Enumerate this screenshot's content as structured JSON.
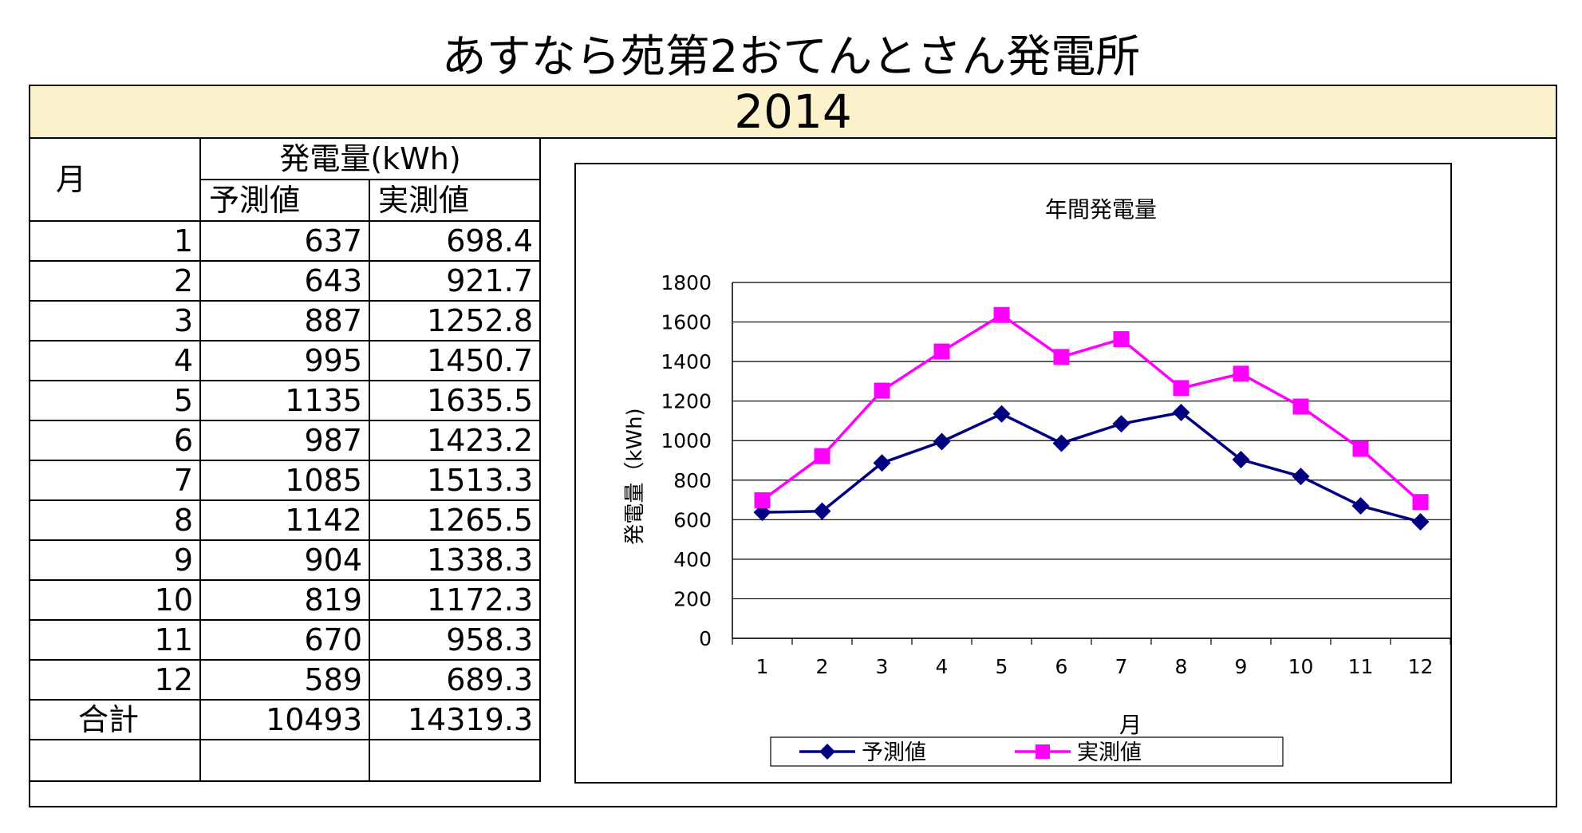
{
  "page": {
    "title": "あすなら苑第2おてんとさん発電所",
    "year": "2014"
  },
  "table": {
    "month_header": "月",
    "group_header": "発電量(kWh)",
    "col_headers": [
      "予測値",
      "実測値"
    ],
    "rows": [
      {
        "month": "1",
        "forecast": "637",
        "actual": "698.4"
      },
      {
        "month": "2",
        "forecast": "643",
        "actual": "921.7"
      },
      {
        "month": "3",
        "forecast": "887",
        "actual": "1252.8"
      },
      {
        "month": "4",
        "forecast": "995",
        "actual": "1450.7"
      },
      {
        "month": "5",
        "forecast": "1135",
        "actual": "1635.5"
      },
      {
        "month": "6",
        "forecast": "987",
        "actual": "1423.2"
      },
      {
        "month": "7",
        "forecast": "1085",
        "actual": "1513.3"
      },
      {
        "month": "8",
        "forecast": "1142",
        "actual": "1265.5"
      },
      {
        "month": "9",
        "forecast": "904",
        "actual": "1338.3"
      },
      {
        "month": "10",
        "forecast": "819",
        "actual": "1172.3"
      },
      {
        "month": "11",
        "forecast": "670",
        "actual": "958.3"
      },
      {
        "month": "12",
        "forecast": "589",
        "actual": "689.3"
      }
    ],
    "total": {
      "label": "合計",
      "forecast": "10493",
      "actual": "14319.3"
    }
  },
  "chart_data": {
    "type": "line",
    "title": "年間発電量",
    "xlabel": "月",
    "ylabel": "発電量（kWh)",
    "categories": [
      "1",
      "2",
      "3",
      "4",
      "5",
      "6",
      "7",
      "8",
      "9",
      "10",
      "11",
      "12"
    ],
    "ylim": [
      0,
      1800
    ],
    "yticks": [
      0,
      200,
      400,
      600,
      800,
      1000,
      1200,
      1400,
      1600,
      1800
    ],
    "grid": true,
    "legend_position": "bottom",
    "series": [
      {
        "name": "予測値",
        "color": "#000080",
        "marker": "diamond",
        "values": [
          637,
          643,
          887,
          995,
          1135,
          987,
          1085,
          1142,
          904,
          819,
          670,
          589
        ]
      },
      {
        "name": "実測値",
        "color": "#ff00ff",
        "marker": "square",
        "values": [
          698.4,
          921.7,
          1252.8,
          1450.7,
          1635.5,
          1423.2,
          1513.3,
          1265.5,
          1338.3,
          1172.3,
          958.3,
          689.3
        ]
      }
    ]
  }
}
